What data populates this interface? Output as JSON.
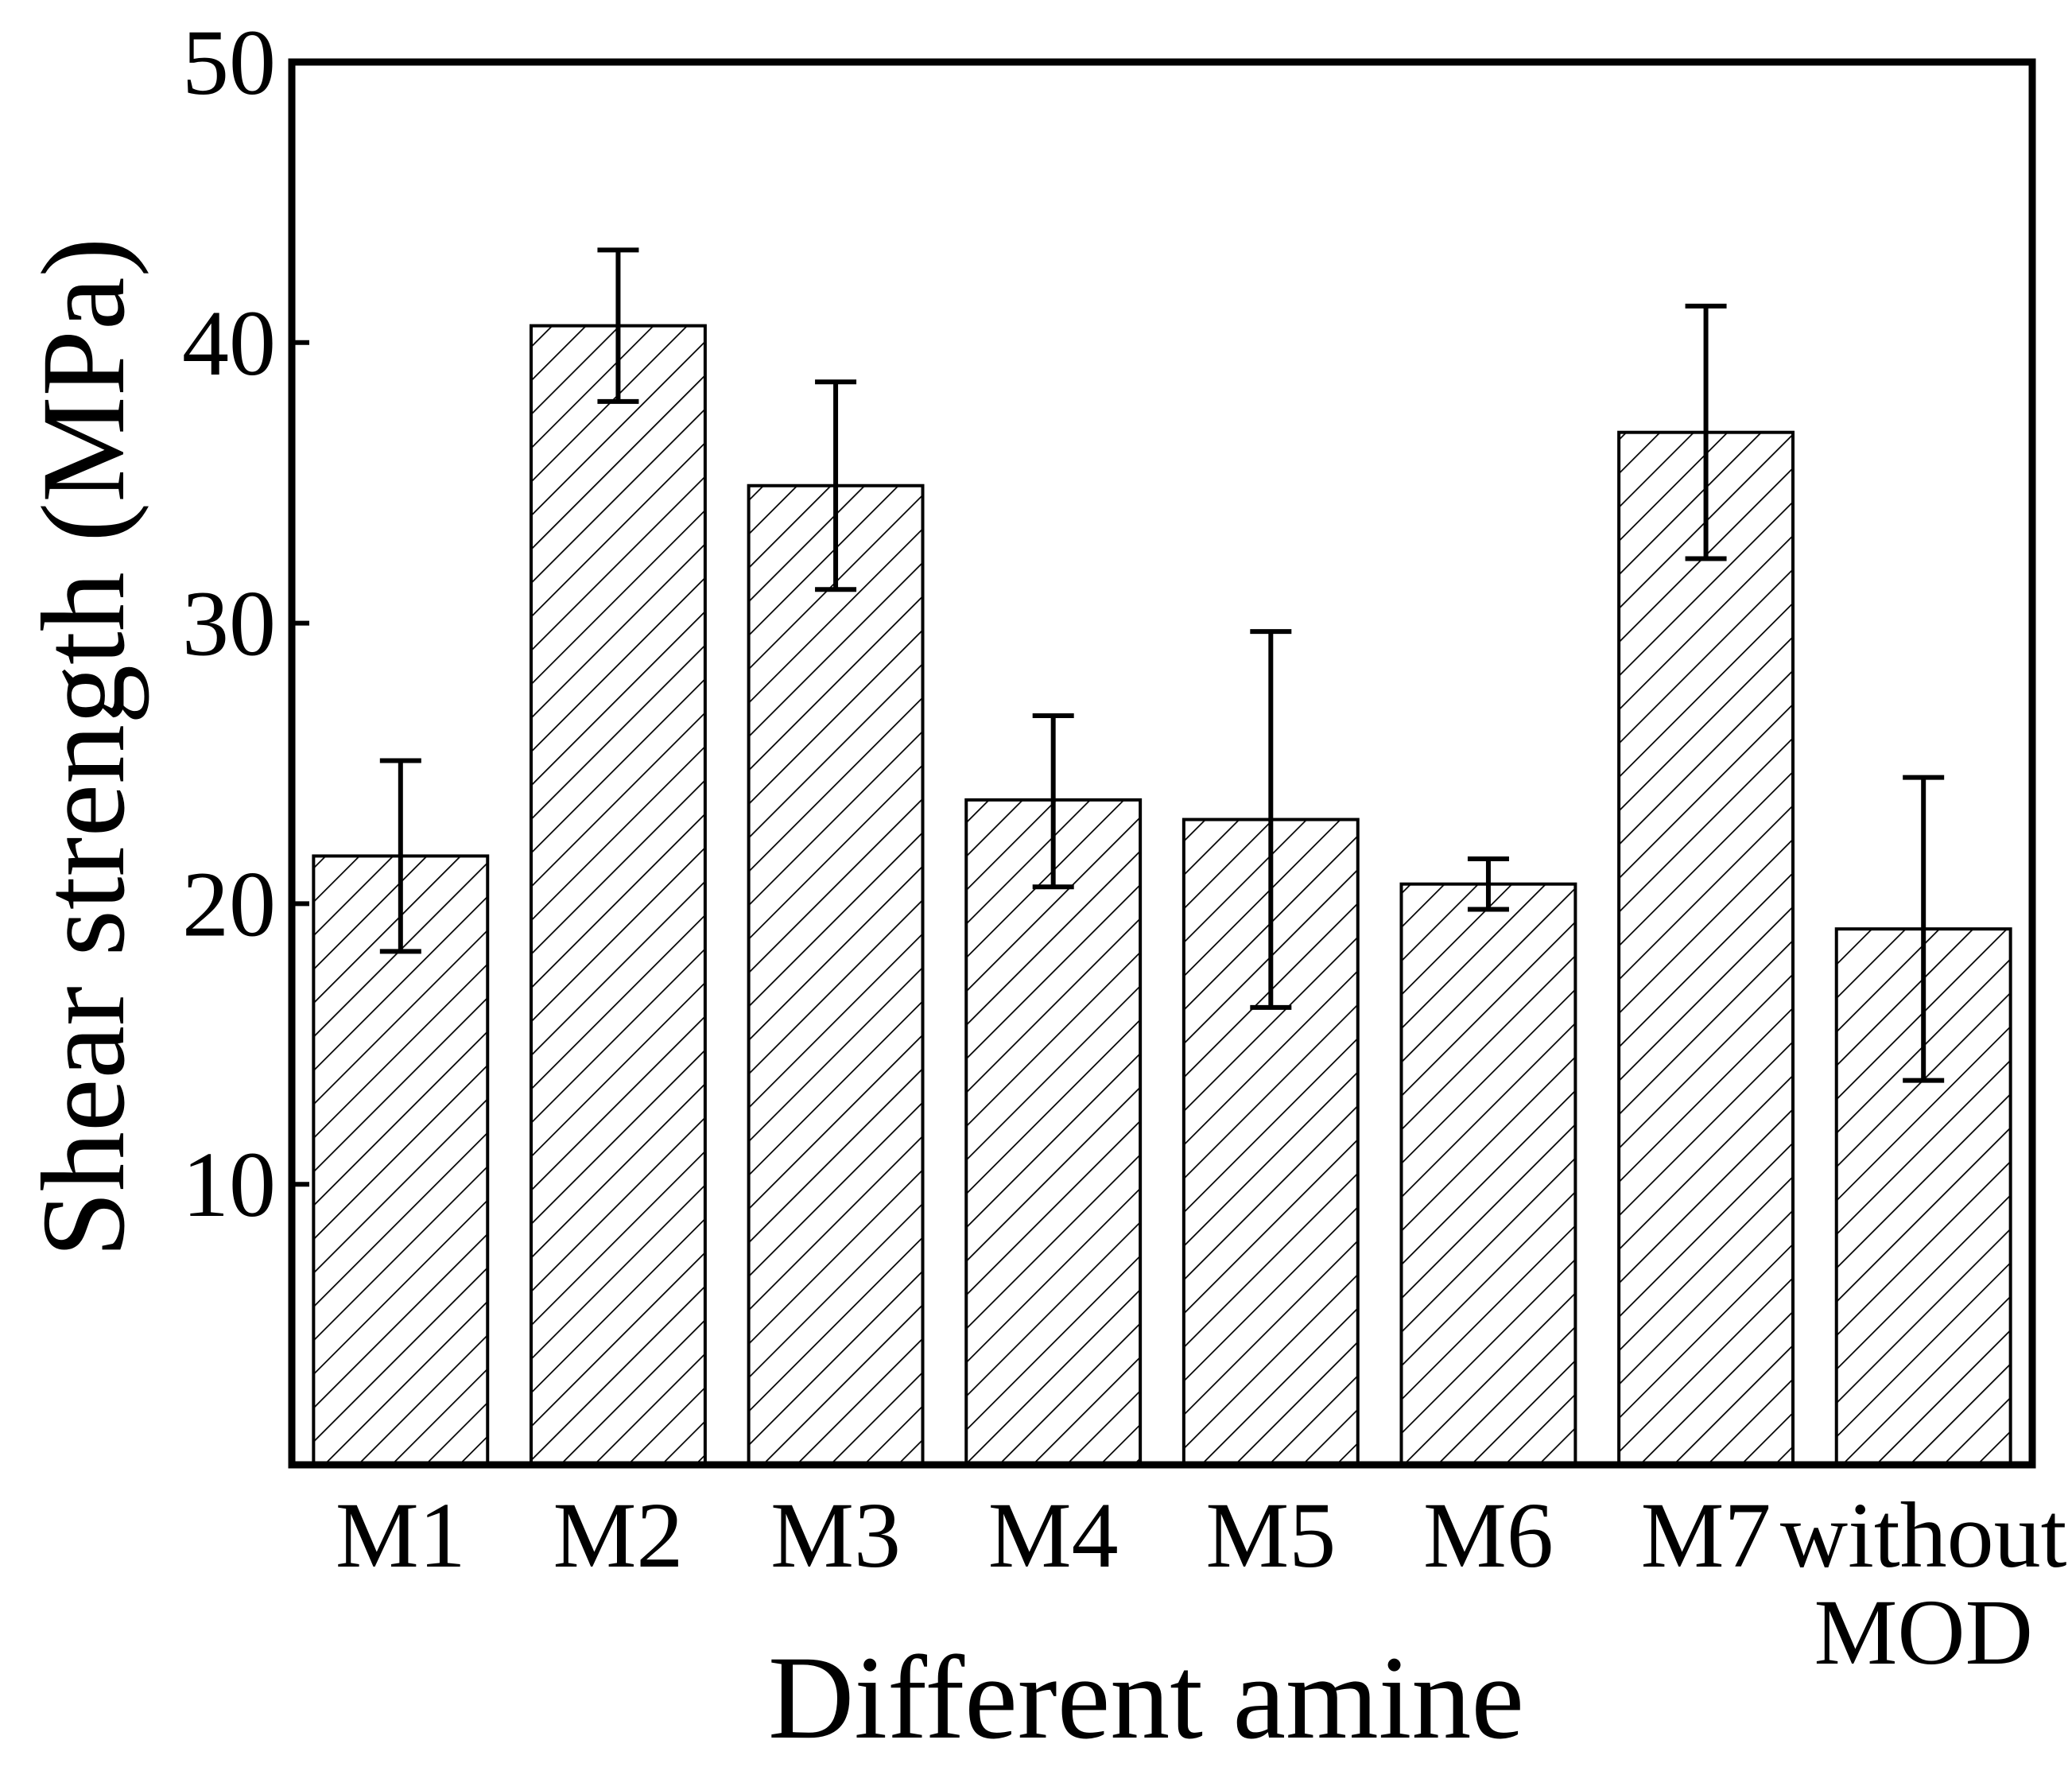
{
  "chart_data": {
    "type": "bar",
    "title": "",
    "xlabel": "Different amine",
    "ylabel": "Shear strength (MPa)",
    "ylim": [
      0,
      50
    ],
    "yticks": [
      10,
      20,
      30,
      40,
      50
    ],
    "grid": false,
    "pattern": "diagonal-hatch",
    "categories": [
      "M1",
      "M2",
      "M3",
      "M4",
      "M5",
      "M6",
      "M7",
      "without MOD"
    ],
    "category_lines": [
      [
        "M1"
      ],
      [
        "M2"
      ],
      [
        "M3"
      ],
      [
        "M4"
      ],
      [
        "M5"
      ],
      [
        "M6"
      ],
      [
        "M7"
      ],
      [
        "without",
        "MOD"
      ]
    ],
    "series": [
      {
        "name": "Shear strength",
        "values": [
          21.7,
          40.6,
          34.9,
          23.7,
          23.0,
          20.7,
          36.8,
          19.1
        ],
        "error_low": [
          18.3,
          37.9,
          31.2,
          20.6,
          16.3,
          19.8,
          32.3,
          13.7
        ],
        "error_high": [
          25.1,
          43.3,
          38.6,
          26.7,
          29.7,
          21.6,
          41.3,
          24.5
        ]
      }
    ]
  }
}
